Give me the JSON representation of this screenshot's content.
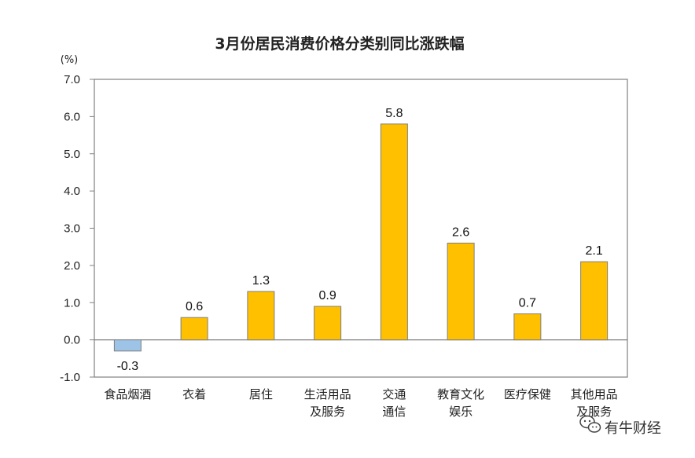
{
  "chart_data": {
    "type": "bar",
    "title": "3月份居民消费价格分类别同比涨跌幅",
    "ylabel_unit": "(%)",
    "ylim": [
      -1.0,
      7.0
    ],
    "yticks": [
      "7.0",
      "6.0",
      "5.0",
      "4.0",
      "3.0",
      "2.0",
      "1.0",
      "0.0",
      "-1.0"
    ],
    "ytick_values": [
      7,
      6,
      5,
      4,
      3,
      2,
      1,
      0,
      -1
    ],
    "grid": false,
    "legend": "none",
    "categories": [
      [
        "食品烟酒"
      ],
      [
        "衣着"
      ],
      [
        "居住"
      ],
      [
        "生活用品",
        "及服务"
      ],
      [
        "交通",
        "通信"
      ],
      [
        "教育文化",
        "娱乐"
      ],
      [
        "医疗保健"
      ],
      [
        "其他用品",
        "及服务"
      ]
    ],
    "values": [
      -0.3,
      0.6,
      1.3,
      0.9,
      5.8,
      2.6,
      0.7,
      2.1
    ],
    "data_labels": [
      "-0.3",
      "0.6",
      "1.3",
      "0.9",
      "5.8",
      "2.6",
      "0.7",
      "2.1"
    ],
    "colors": {
      "positive": "#FFC000",
      "negative": "#9DC3E6",
      "axis": "#808080"
    }
  },
  "watermark": {
    "text": "有牛财经",
    "icon": "wechat-icon"
  }
}
